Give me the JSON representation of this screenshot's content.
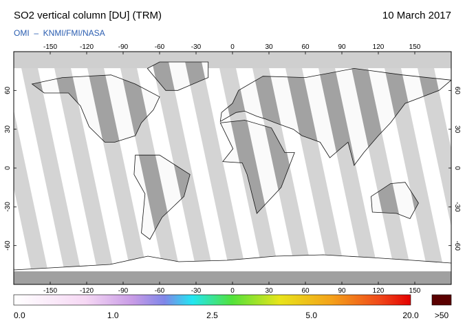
{
  "header": {
    "title": "SO2 vertical column [DU] (TRM)",
    "date": "10 March 2017",
    "source": "OMI  –  KNMI/FMI/NASA"
  },
  "map": {
    "lon_range": [
      -180,
      180
    ],
    "lat_range": [
      -90,
      90
    ],
    "lon_ticks": [
      -150,
      -120,
      -90,
      -60,
      -30,
      0,
      30,
      60,
      90,
      120,
      150
    ],
    "lat_ticks": [
      60,
      30,
      0,
      -30,
      -60
    ]
  },
  "colorbar": {
    "labels": [
      "0.0",
      "1.0",
      "2.5",
      "5.0",
      "20.0"
    ],
    "overflow_label": ">50"
  }
}
